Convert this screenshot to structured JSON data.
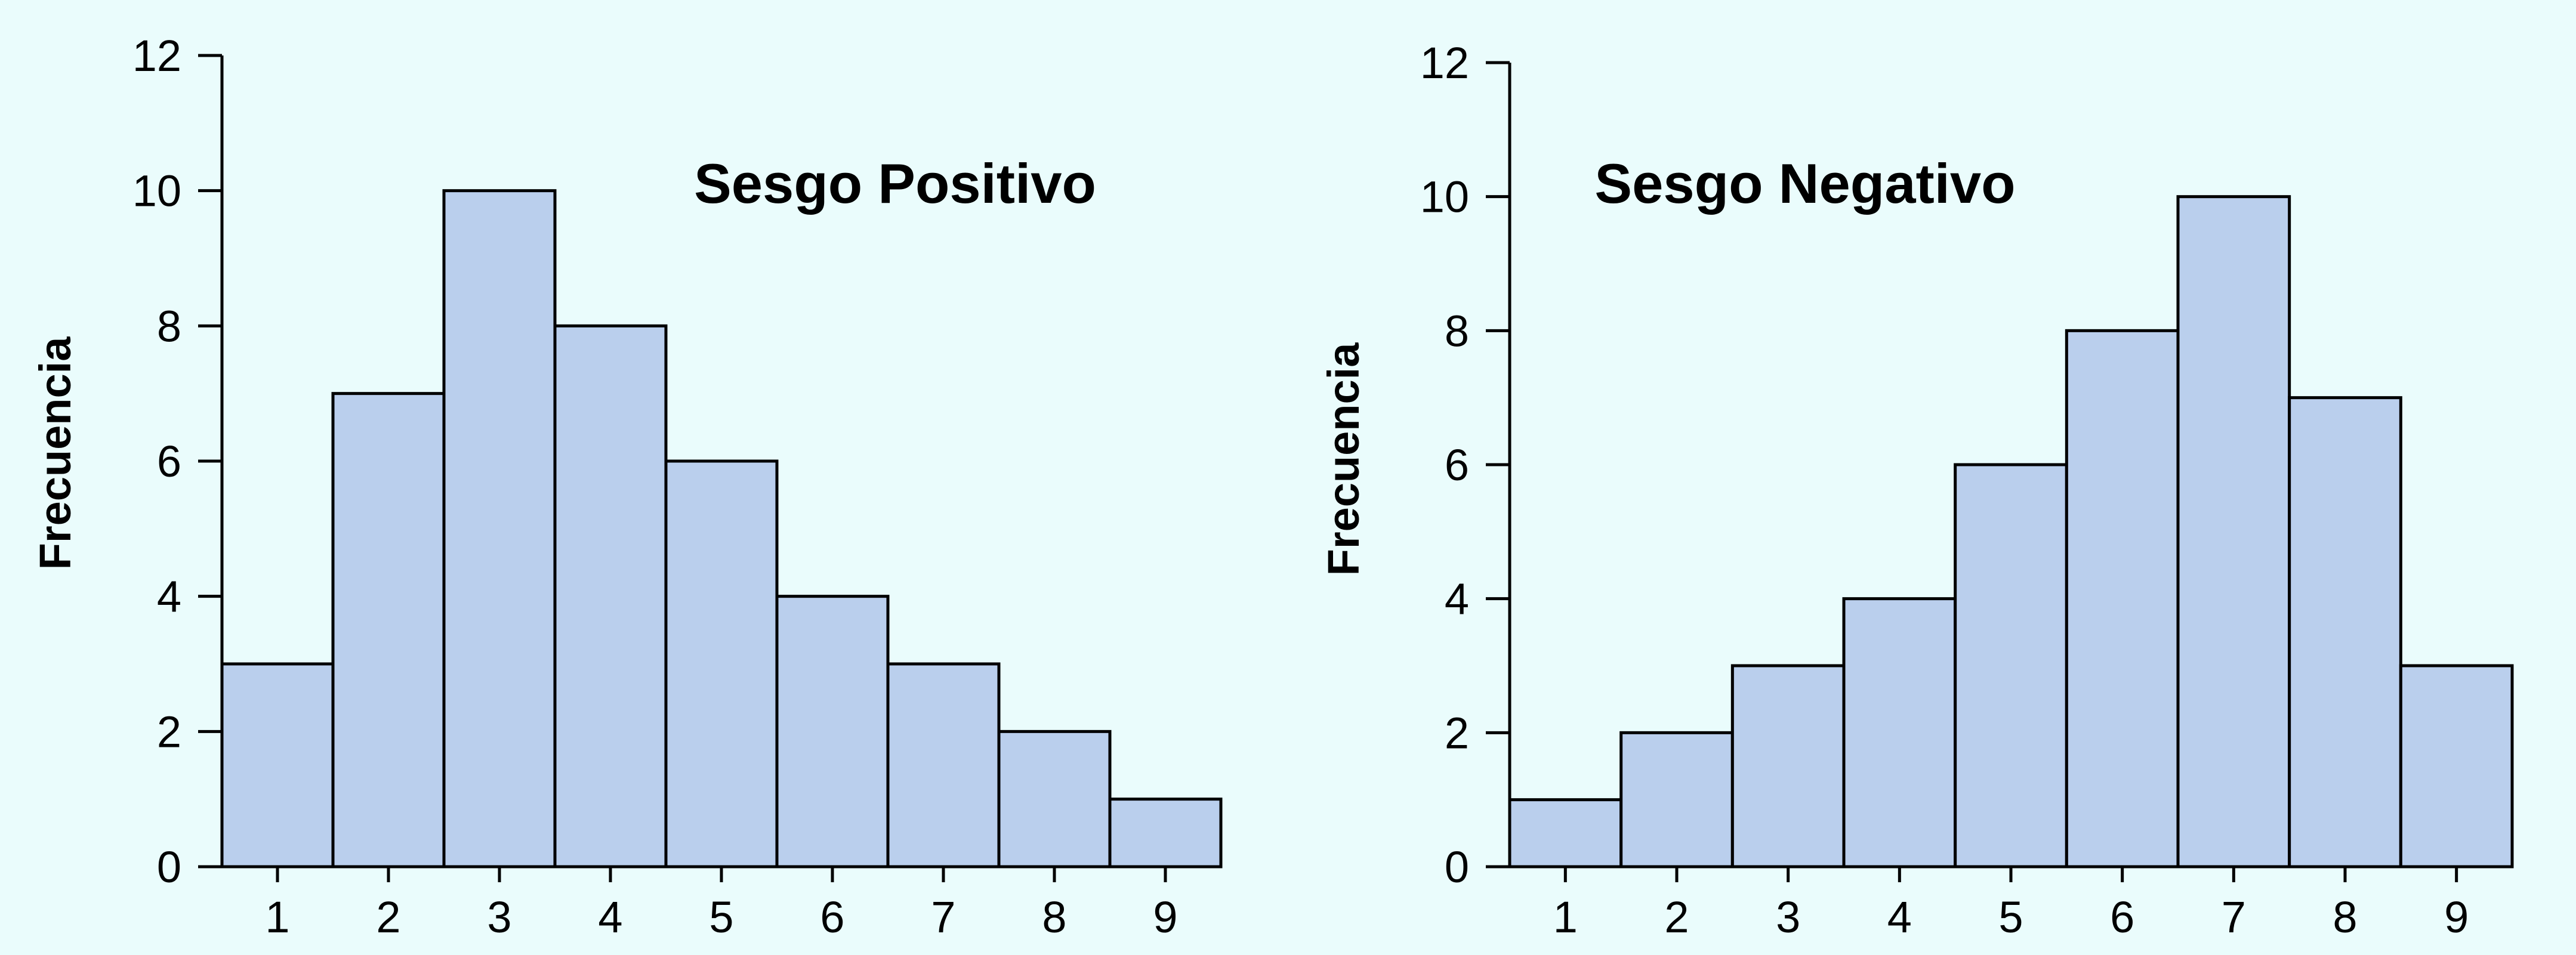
{
  "style": {
    "bar_fill": "#bacfed",
    "bar_stroke": "#000000",
    "background": "#eafcfc"
  },
  "chart_data": [
    {
      "type": "bar",
      "title": "Sesgo Positivo",
      "xlabel": "",
      "ylabel": "Frecuencia",
      "categories": [
        "1",
        "2",
        "3",
        "4",
        "5",
        "6",
        "7",
        "8",
        "9"
      ],
      "values": [
        3,
        7,
        10,
        8,
        6,
        4,
        3,
        2,
        1
      ],
      "ylim": [
        0,
        12
      ],
      "yticks": [
        "0",
        "2",
        "4",
        "6",
        "8",
        "10",
        "12"
      ],
      "grid": false,
      "legend": "none"
    },
    {
      "type": "bar",
      "title": "Sesgo Negativo",
      "xlabel": "",
      "ylabel": "Frecuencia",
      "categories": [
        "1",
        "2",
        "3",
        "4",
        "5",
        "6",
        "7",
        "8",
        "9"
      ],
      "values": [
        1,
        2,
        3,
        4,
        6,
        8,
        10,
        7,
        3
      ],
      "ylim": [
        0,
        12
      ],
      "yticks": [
        "0",
        "2",
        "4",
        "6",
        "8",
        "10",
        "12"
      ],
      "grid": false,
      "legend": "none"
    }
  ]
}
